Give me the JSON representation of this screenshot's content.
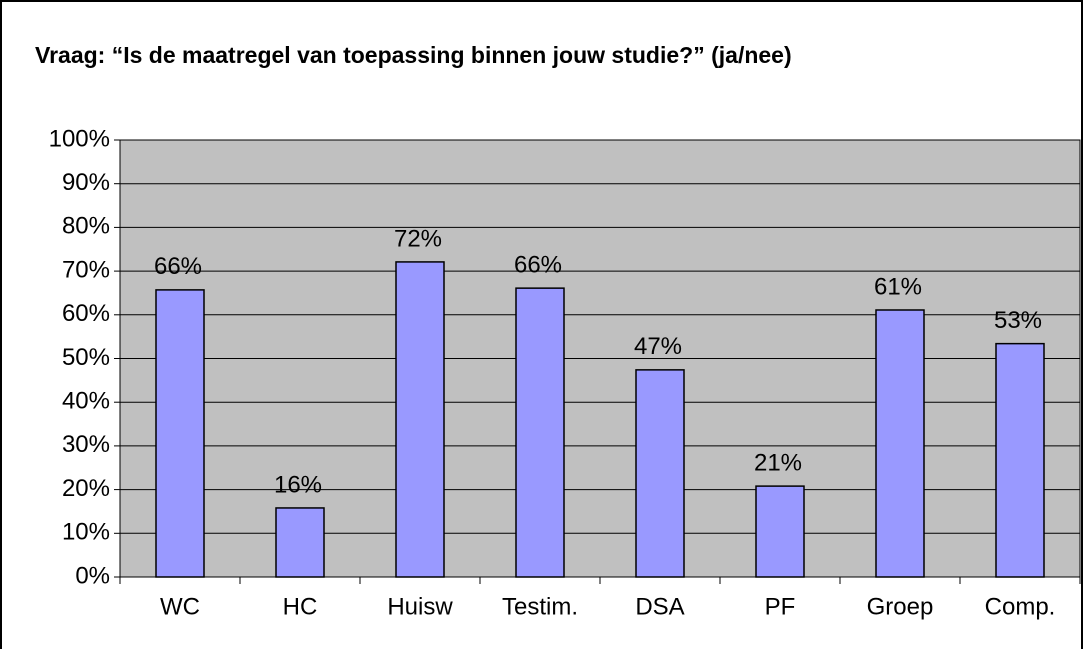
{
  "chart_data": {
    "type": "bar",
    "title": "Vraag: “Is de maatregel van toepassing binnen jouw studie?” (ja/nee)",
    "categories": [
      "WC",
      "HC",
      "Huisw",
      "Testim.",
      "DSA",
      "PF",
      "Groep",
      "Comp."
    ],
    "values": [
      65.7,
      15.8,
      72.1,
      66.1,
      47.4,
      20.8,
      61.1,
      53.4
    ],
    "value_labels": [
      "66%",
      "16%",
      "72%",
      "66%",
      "47%",
      "21%",
      "61%",
      "53%"
    ],
    "color": "#9999ff",
    "ylim": [
      0,
      100
    ],
    "yticks": [
      {
        "value": 0,
        "label": "0%"
      },
      {
        "value": 10,
        "label": "10%"
      },
      {
        "value": 20,
        "label": "20%"
      },
      {
        "value": 30,
        "label": "30%"
      },
      {
        "value": 40,
        "label": "40%"
      },
      {
        "value": 50,
        "label": "50%"
      },
      {
        "value": 60,
        "label": "60%"
      },
      {
        "value": 70,
        "label": "70%"
      },
      {
        "value": 80,
        "label": "80%"
      },
      {
        "value": 90,
        "label": "90%"
      },
      {
        "value": 100,
        "label": "100%"
      }
    ],
    "grid": true
  }
}
